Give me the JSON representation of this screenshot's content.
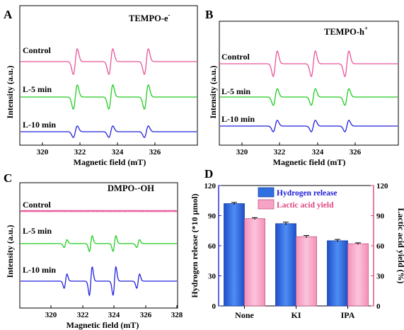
{
  "panels": [
    {
      "letter": "A",
      "title": "TEMPO-e",
      "title_sup": "-",
      "ylabel": "Intensity (a.u.)",
      "xlabel": "Magnetic field (mT)",
      "xticks": [
        320,
        322,
        324,
        326
      ],
      "xlim": [
        319,
        327
      ],
      "traces": [
        {
          "label": "Control",
          "color": "#e8559b",
          "amplitude": 1.0
        },
        {
          "label": "L-5 min",
          "color": "#22cc22",
          "amplitude": 0.95
        },
        {
          "label": "L-10 min",
          "color": "#2222dd",
          "amplitude": 0.45
        }
      ]
    },
    {
      "letter": "B",
      "title": "TEMPO-h",
      "title_sup": "+",
      "ylabel": "Intensity (a.u.)",
      "xlabel": "Magnetic field (mT)",
      "xticks": [
        320,
        322,
        324,
        326
      ],
      "xlim": [
        319,
        327
      ],
      "traces": [
        {
          "label": "Control",
          "color": "#e8559b",
          "amplitude": 1.0
        },
        {
          "label": "L-5 min",
          "color": "#22cc22",
          "amplitude": 0.65
        },
        {
          "label": "L-10 min",
          "color": "#2222dd",
          "amplitude": 0.45
        }
      ]
    },
    {
      "letter": "C",
      "title": "DMPO-·OH",
      "title_sup": "",
      "ylabel": "Intensity (a.u.)",
      "xlabel": "Magnetic field (mT)",
      "xticks": [
        320,
        322,
        324,
        326,
        328
      ],
      "xlim": [
        318,
        328
      ],
      "traces": [
        {
          "label": "Control",
          "color": "#e8559b",
          "amplitude": 0.0
        },
        {
          "label": "L-5 min",
          "color": "#22cc22",
          "amplitude": 0.55
        },
        {
          "label": "L-10 min",
          "color": "#2222dd",
          "amplitude": 1.0
        }
      ]
    }
  ],
  "chart_data": {
    "type": "bar",
    "letter": "D",
    "categories": [
      "None",
      "KI",
      "IPA"
    ],
    "series": [
      {
        "name": "Hydrogen release",
        "values": [
          102,
          82,
          65
        ],
        "errors": [
          1.2,
          1.5,
          1.3
        ],
        "color": "#2f6fe0",
        "axis": "left"
      },
      {
        "name": "Lactic acid yield",
        "values": [
          87,
          69,
          62
        ],
        "errors": [
          1.0,
          1.2,
          0.9
        ],
        "color": "#f7a3c6",
        "axis": "right"
      }
    ],
    "ylabel_left": "Hydrogen release (*10 μmol)",
    "ylabel_right": "Lactic acid yield (%)",
    "ylim_left": [
      0,
      120
    ],
    "ylim_right": [
      0,
      120
    ],
    "yticks_left": [
      0,
      30,
      60,
      90,
      120
    ],
    "yticks_right": [
      0,
      30,
      60,
      90,
      120
    ],
    "left_axis_color": "#1c1cd6",
    "right_axis_color": "#e0457f",
    "legend_position": "top-right"
  }
}
